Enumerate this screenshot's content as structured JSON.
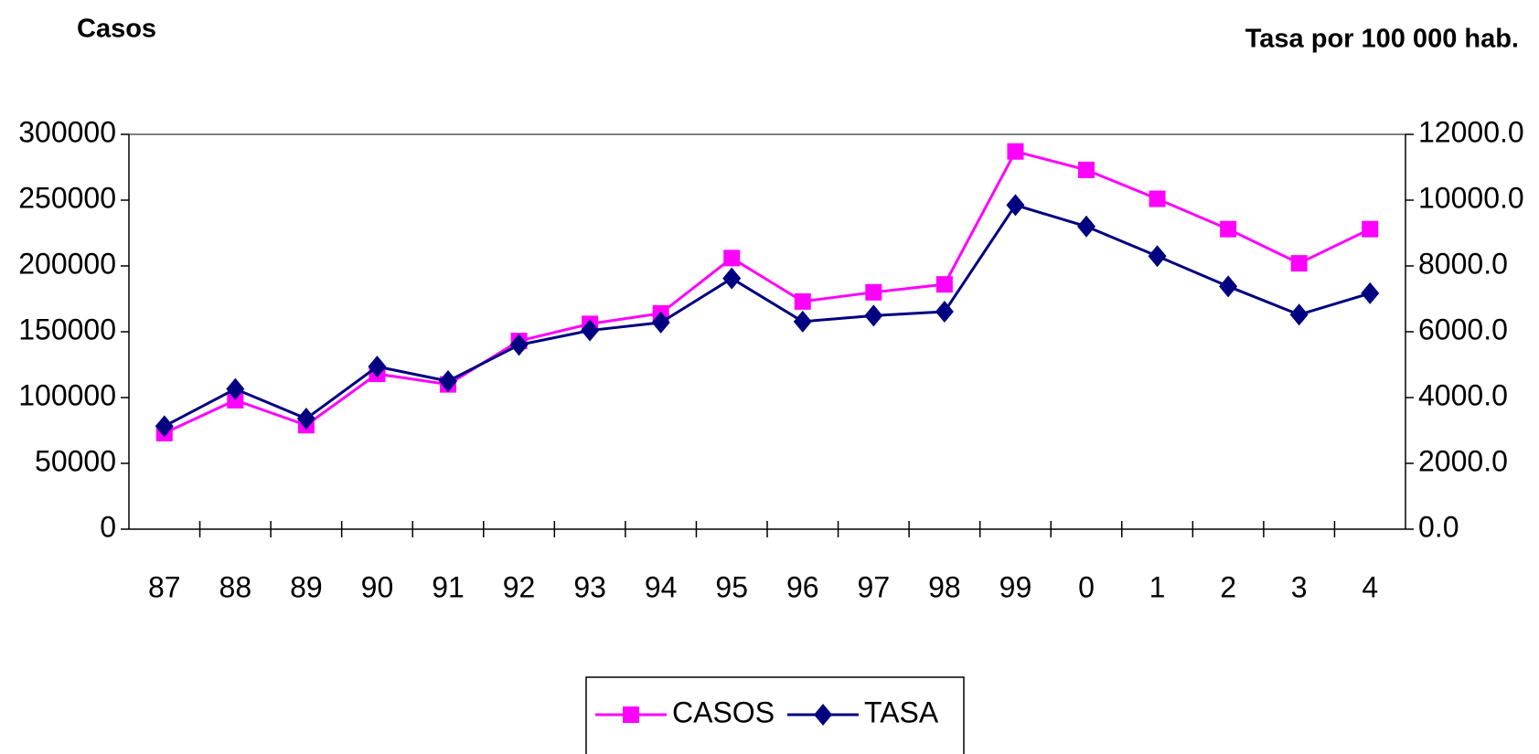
{
  "chart_data": {
    "type": "line",
    "y_label": "Casos",
    "y2_label": "Tasa por 100 000 hab.",
    "categories": [
      "87",
      "88",
      "89",
      "90",
      "91",
      "92",
      "93",
      "94",
      "95",
      "96",
      "97",
      "98",
      "99",
      "0",
      "1",
      "2",
      "3",
      "4"
    ],
    "series": [
      {
        "name": "CASOS",
        "color": "#ff00ff",
        "marker": "square",
        "values": [
          73000,
          98000,
          79000,
          118000,
          110000,
          143000,
          156000,
          164000,
          206000,
          173000,
          180000,
          186000,
          287000,
          273000,
          251000,
          228000,
          202000,
          228000
        ]
      },
      {
        "name": "TASA",
        "color": "#000080",
        "marker": "diamond",
        "axis": "y2",
        "values": [
          3130,
          4260,
          3360,
          4940,
          4500,
          5600,
          6040,
          6280,
          7620,
          6310,
          6490,
          6610,
          9850,
          9200,
          8300,
          7380,
          6520,
          7170
        ]
      }
    ],
    "ylim": [
      0,
      300000
    ],
    "yticks": [
      0,
      50000,
      100000,
      150000,
      200000,
      250000,
      300000
    ],
    "y2lim": [
      0,
      12000
    ],
    "y2ticks": [
      {
        "value": 0,
        "label": "0.0"
      },
      {
        "value": 2000,
        "label": "2000.0"
      },
      {
        "value": 4000,
        "label": "4000.0"
      },
      {
        "value": 6000,
        "label": "6000.0"
      },
      {
        "value": 8000,
        "label": "8000.0"
      },
      {
        "value": 10000,
        "label": "10000.0"
      },
      {
        "value": 12000,
        "label": "12000.0"
      }
    ],
    "legend": "bottom"
  }
}
